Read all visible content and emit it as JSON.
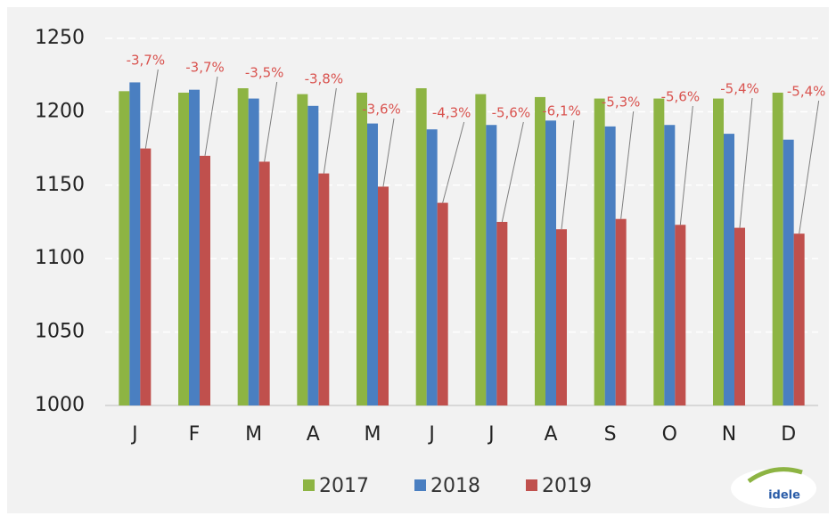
{
  "chart_data": {
    "type": "bar",
    "categories": [
      "J",
      "F",
      "M",
      "A",
      "M",
      "J",
      "J",
      "A",
      "S",
      "O",
      "N",
      "D"
    ],
    "series": [
      {
        "name": "2017",
        "color": "#8db443",
        "values": [
          1214,
          1213,
          1216,
          1212,
          1213,
          1216,
          1212,
          1210,
          1209,
          1209,
          1209,
          1213
        ]
      },
      {
        "name": "2018",
        "color": "#4a7fc1",
        "values": [
          1220,
          1215,
          1209,
          1204,
          1192,
          1188,
          1191,
          1194,
          1190,
          1191,
          1185,
          1181
        ]
      },
      {
        "name": "2019",
        "color": "#c0504d",
        "values": [
          1175,
          1170,
          1166,
          1158,
          1149,
          1138,
          1125,
          1120,
          1127,
          1123,
          1121,
          1117
        ]
      }
    ],
    "annotations": [
      "-3,7%",
      "-3,7%",
      "-3,5%",
      "-3,8%",
      "-3,6%",
      "-4,3%",
      "-5,6%",
      "-6,1%",
      "-5,3%",
      "-5,6%",
      "-5,4%",
      "-5,4%"
    ],
    "ylim": [
      1000,
      1250
    ],
    "yticks": [
      1000,
      1050,
      1100,
      1150,
      1200,
      1250
    ],
    "grid": true,
    "legend": "bottom",
    "logo": "idele"
  }
}
